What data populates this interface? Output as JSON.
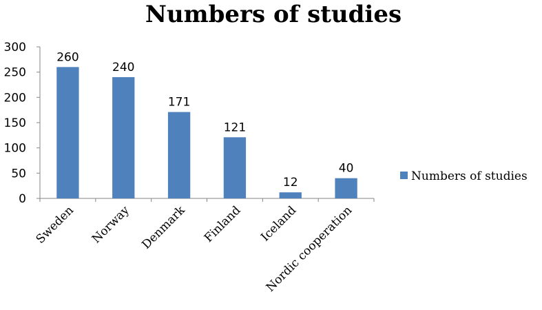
{
  "chart_data": {
    "type": "bar",
    "title": "Numbers of studies",
    "categories": [
      "Sweden",
      "Norway",
      "Denmark",
      "Finland",
      "Iceland",
      "Nordic cooperation"
    ],
    "series": [
      {
        "name": "Numbers of studies",
        "values": [
          260,
          240,
          171,
          121,
          12,
          40
        ]
      }
    ],
    "ylim": [
      0,
      300
    ],
    "yticks": [
      0,
      50,
      100,
      150,
      200,
      250,
      300
    ],
    "data_labels": [
      "260",
      "240",
      "171",
      "121",
      "12",
      "40"
    ],
    "legend_position": "right",
    "grid": false,
    "bar_color": "#4f81bd"
  }
}
